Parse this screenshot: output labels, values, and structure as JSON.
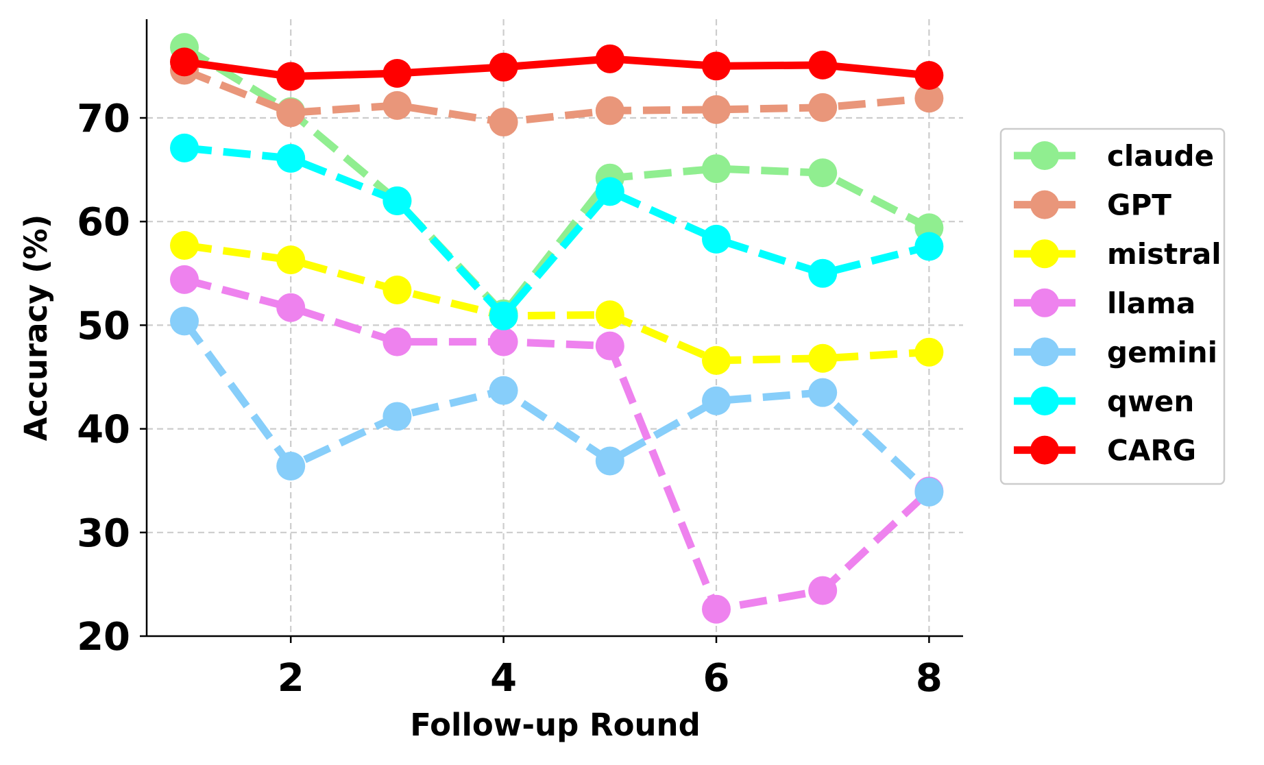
{
  "chart_data": {
    "type": "line",
    "xlabel": "Follow-up Round",
    "ylabel": "Accuracy (%)",
    "xlim": [
      0.8,
      8.35
    ],
    "ylim": [
      20,
      80
    ],
    "xticks": [
      2,
      4,
      6,
      8
    ],
    "yticks": [
      20,
      30,
      40,
      50,
      60,
      70
    ],
    "grid": true,
    "legend_position": "right",
    "x": [
      1,
      2,
      3,
      4,
      5,
      6,
      7,
      8
    ],
    "series": [
      {
        "name": "claude",
        "color": "#90EE90",
        "dashed": true,
        "values": [
          76.8,
          70.6,
          62.0,
          51.1,
          64.2,
          65.1,
          64.7,
          59.4
        ]
      },
      {
        "name": "GPT",
        "color": "#E9967A",
        "dashed": true,
        "values": [
          74.6,
          70.5,
          71.2,
          69.6,
          70.7,
          70.8,
          71.0,
          71.9
        ]
      },
      {
        "name": "mistral",
        "color": "#FFFF00",
        "dashed": true,
        "values": [
          57.7,
          56.3,
          53.4,
          50.9,
          51.0,
          46.6,
          46.8,
          47.4
        ]
      },
      {
        "name": "llama",
        "color": "#EE82EE",
        "dashed": true,
        "values": [
          54.4,
          51.7,
          48.4,
          48.4,
          48.0,
          22.6,
          24.4,
          34.0
        ]
      },
      {
        "name": "gemini",
        "color": "#87CEFA",
        "dashed": true,
        "values": [
          50.4,
          36.4,
          41.2,
          43.7,
          36.9,
          42.7,
          43.5,
          33.9
        ]
      },
      {
        "name": "qwen",
        "color": "#00FFFF",
        "dashed": true,
        "values": [
          67.1,
          66.1,
          62.0,
          50.9,
          62.9,
          58.3,
          55.0,
          57.6
        ]
      },
      {
        "name": "CARG",
        "color": "#FF0000",
        "dashed": false,
        "values": [
          75.4,
          74.0,
          74.3,
          74.9,
          75.7,
          75.0,
          75.1,
          74.1
        ]
      }
    ]
  }
}
